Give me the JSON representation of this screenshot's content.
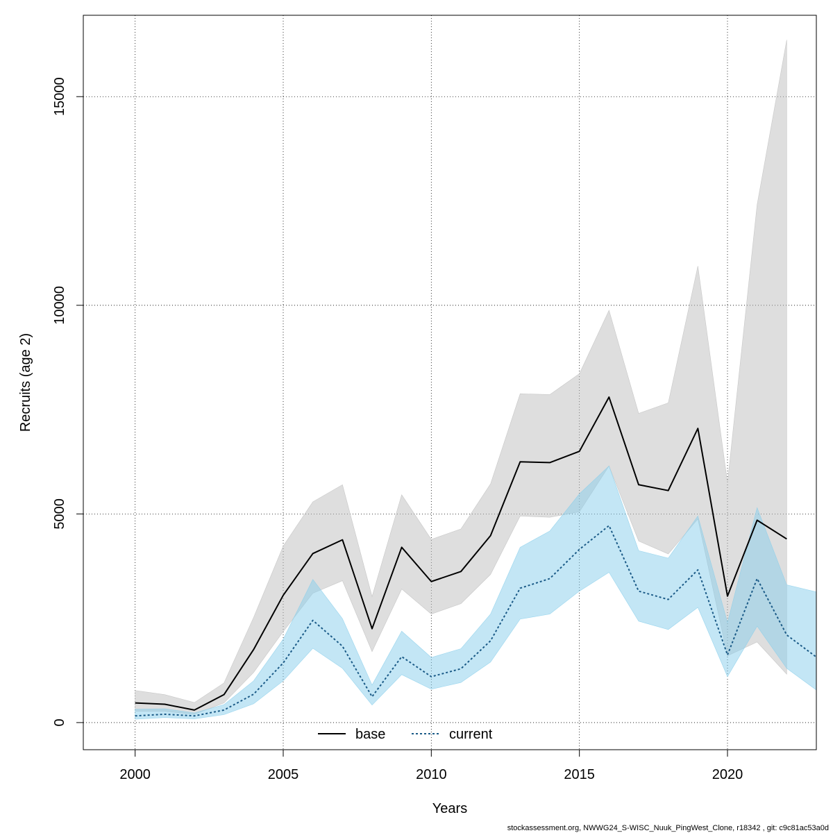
{
  "chart_data": {
    "type": "line",
    "xlabel": "Years",
    "ylabel": "Recruits (age 2)",
    "xlim": [
      1998.25,
      2023
    ],
    "ylim": [
      -650,
      16950
    ],
    "x_ticks": [
      2000,
      2005,
      2010,
      2015,
      2020
    ],
    "y_ticks": [
      0,
      5000,
      10000,
      15000
    ],
    "grid": true,
    "legend_position": "bottom-center",
    "footer": "stockassessment.org, NWWG24_S-WISC_Nuuk_PingWest_Clone, r18342 , git: c9c81ac53a0d",
    "series": [
      {
        "name": "base",
        "line_color": "#000000",
        "band_color": "#bebebe",
        "x": [
          2000,
          2001,
          2002,
          2003,
          2004,
          2005,
          2006,
          2007,
          2008,
          2009,
          2010,
          2011,
          2012,
          2013,
          2014,
          2015,
          2016,
          2017,
          2018,
          2019,
          2020,
          2021,
          2022
        ],
        "values": [
          470,
          440,
          300,
          670,
          1750,
          3050,
          4050,
          4380,
          2250,
          4200,
          3380,
          3620,
          4480,
          6250,
          6230,
          6500,
          7800,
          5700,
          5560,
          7050,
          3030,
          4850,
          4400
        ],
        "lower": [
          270,
          270,
          200,
          470,
          1200,
          2180,
          3100,
          3400,
          1700,
          3200,
          2600,
          2850,
          3550,
          4950,
          4920,
          5050,
          6150,
          4350,
          4040,
          4880,
          1600,
          1930,
          1160
        ],
        "upper": [
          770,
          670,
          480,
          950,
          2520,
          4230,
          5290,
          5700,
          3020,
          5460,
          4390,
          4640,
          5720,
          7880,
          7860,
          8360,
          9880,
          7410,
          7660,
          10940,
          5750,
          12410,
          16360
        ]
      },
      {
        "name": "current",
        "line_color": "#1a5a87",
        "band_color": "#87ceeb",
        "x": [
          2000,
          2001,
          2002,
          2003,
          2004,
          2005,
          2006,
          2007,
          2008,
          2009,
          2010,
          2011,
          2012,
          2013,
          2014,
          2015,
          2016,
          2017,
          2018,
          2019,
          2020,
          2021,
          2022,
          2023
        ],
        "values": [
          160,
          200,
          160,
          300,
          680,
          1430,
          2450,
          1830,
          620,
          1580,
          1100,
          1290,
          1960,
          3220,
          3450,
          4150,
          4720,
          3150,
          2950,
          3660,
          1620,
          3450,
          2100,
          1570
        ],
        "lower": [
          80,
          120,
          90,
          190,
          450,
          1000,
          1780,
          1300,
          420,
          1150,
          800,
          960,
          1450,
          2480,
          2600,
          3150,
          3600,
          2430,
          2230,
          2760,
          1100,
          2310,
          1300,
          780
        ],
        "upper": [
          320,
          330,
          230,
          430,
          1000,
          2000,
          3430,
          2490,
          900,
          2190,
          1560,
          1770,
          2600,
          4200,
          4590,
          5480,
          6150,
          4120,
          3940,
          4950,
          2400,
          5150,
          3300,
          3130
        ]
      }
    ]
  }
}
